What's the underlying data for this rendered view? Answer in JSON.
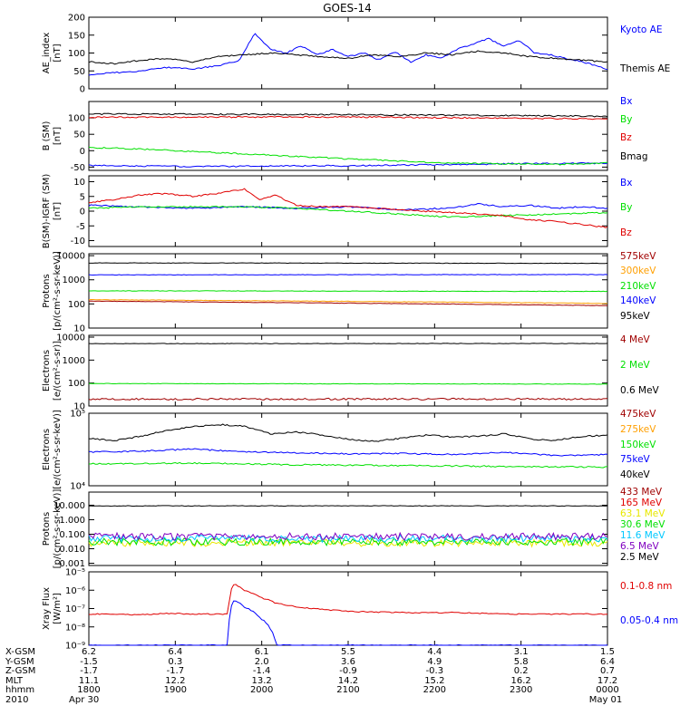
{
  "title": "GOES-14",
  "colors": {
    "black": "#000000",
    "blue": "#0000ff",
    "red": "#e00000",
    "green": "#00e000",
    "orange": "#ff9f00",
    "darkred": "#a00000",
    "yellow": "#e8e800",
    "cyan": "#00c8ff",
    "purple": "#8000c0"
  },
  "chart_data": [
    {
      "type": "line",
      "ylabel": [
        "AE_index",
        "[nT]"
      ],
      "ylim": [
        0,
        200
      ],
      "yscale": "linear",
      "yticks": [
        0,
        50,
        100,
        150,
        200
      ],
      "ytick_labels": [
        "0",
        "50",
        "100",
        "150",
        "200"
      ],
      "series": [
        {
          "name": "Kyoto AE",
          "color": "#0000ff",
          "x": [
            0,
            0.05,
            0.1,
            0.15,
            0.2,
            0.25,
            0.29,
            0.32,
            0.35,
            0.38,
            0.41,
            0.44,
            0.47,
            0.5,
            0.53,
            0.56,
            0.59,
            0.62,
            0.65,
            0.68,
            0.71,
            0.74,
            0.77,
            0.8,
            0.83,
            0.86,
            0.89,
            0.92,
            0.95,
            0.98,
            1.0
          ],
          "y": [
            40,
            45,
            50,
            60,
            55,
            65,
            80,
            155,
            110,
            100,
            120,
            95,
            110,
            90,
            100,
            80,
            105,
            75,
            95,
            85,
            110,
            125,
            140,
            120,
            135,
            100,
            95,
            85,
            75,
            65,
            55
          ]
        },
        {
          "name": "Themis AE",
          "color": "#000000",
          "x": [
            0,
            0.05,
            0.1,
            0.15,
            0.2,
            0.25,
            0.3,
            0.35,
            0.4,
            0.45,
            0.5,
            0.55,
            0.6,
            0.65,
            0.7,
            0.75,
            0.8,
            0.85,
            0.9,
            0.95,
            1.0
          ],
          "y": [
            75,
            70,
            80,
            85,
            75,
            90,
            95,
            100,
            95,
            90,
            85,
            95,
            90,
            100,
            95,
            105,
            100,
            90,
            85,
            80,
            75
          ]
        }
      ]
    },
    {
      "type": "line",
      "ylabel": [
        "B (SM)",
        "[nT]"
      ],
      "ylim": [
        -60,
        150
      ],
      "yscale": "linear",
      "yticks": [
        -50,
        0,
        50,
        100
      ],
      "ytick_labels": [
        "-50",
        "0",
        "50",
        "100"
      ],
      "series": [
        {
          "name": "Bx",
          "color": "#0000ff",
          "x": [
            0,
            0.2,
            0.5,
            0.8,
            1.0
          ],
          "y": [
            -45,
            -48,
            -46,
            -40,
            -38
          ]
        },
        {
          "name": "By",
          "color": "#00e000",
          "x": [
            0,
            0.1,
            0.3,
            0.5,
            0.7,
            0.9,
            1.0
          ],
          "y": [
            10,
            5,
            -10,
            -25,
            -38,
            -42,
            -38
          ]
        },
        {
          "name": "Bz",
          "color": "#e00000",
          "x": [
            0,
            0.5,
            1.0
          ],
          "y": [
            102,
            103,
            97
          ]
        },
        {
          "name": "Bmag",
          "color": "#000000",
          "x": [
            0,
            0.5,
            1.0
          ],
          "y": [
            112,
            110,
            105
          ]
        }
      ]
    },
    {
      "type": "line",
      "ylabel": [
        "B(SM)-IGRF (SM)",
        "[nT]"
      ],
      "ylim": [
        -12,
        12
      ],
      "yscale": "linear",
      "yticks": [
        -10,
        -5,
        0,
        5,
        10
      ],
      "ytick_labels": [
        "-10",
        "-5",
        "0",
        "5",
        "10"
      ],
      "series": [
        {
          "name": "Bx",
          "color": "#0000ff",
          "x": [
            0,
            0.1,
            0.2,
            0.3,
            0.4,
            0.5,
            0.6,
            0.7,
            0.75,
            0.8,
            0.85,
            0.9,
            0.95,
            1.0
          ],
          "y": [
            2,
            1.5,
            1,
            1.5,
            1,
            1.5,
            0.5,
            1,
            2.5,
            1.5,
            2,
            1,
            1.5,
            1
          ]
        },
        {
          "name": "By",
          "color": "#00e000",
          "x": [
            0,
            0.1,
            0.2,
            0.3,
            0.4,
            0.5,
            0.6,
            0.7,
            0.8,
            0.9,
            1.0
          ],
          "y": [
            1,
            1.5,
            1.5,
            1.5,
            1,
            0,
            -1,
            -2,
            -1.5,
            -1,
            -0.5
          ]
        },
        {
          "name": "Bz",
          "color": "#e00000",
          "x": [
            0,
            0.05,
            0.1,
            0.15,
            0.2,
            0.25,
            0.3,
            0.33,
            0.36,
            0.4,
            0.45,
            0.5,
            0.55,
            0.6,
            0.65,
            0.7,
            0.75,
            0.8,
            0.85,
            0.9,
            0.95,
            1.0
          ],
          "y": [
            3,
            4,
            5.5,
            6,
            5,
            6,
            7.5,
            4,
            5.5,
            2,
            1.5,
            1.5,
            1,
            0.5,
            0,
            -0.5,
            -1,
            -1.5,
            -3,
            -3.5,
            -4.5,
            -5.5
          ]
        }
      ]
    },
    {
      "type": "line",
      "ylabel": [
        "Protons",
        "[p/(cm²-s-sr-keV)]"
      ],
      "ylim": [
        10,
        12000
      ],
      "yscale": "log",
      "yticks": [
        10,
        100,
        1000,
        10000
      ],
      "ytick_labels": [
        "10",
        "100",
        "1000",
        "10000"
      ],
      "series": [
        {
          "name": "575keV",
          "color": "#a00000",
          "x": [
            0,
            1
          ],
          "y": [
            130,
            85
          ]
        },
        {
          "name": "300keV",
          "color": "#ff9f00",
          "x": [
            0,
            1
          ],
          "y": [
            150,
            105
          ]
        },
        {
          "name": "210keV",
          "color": "#00e000",
          "x": [
            0,
            1
          ],
          "y": [
            350,
            330
          ]
        },
        {
          "name": "140keV",
          "color": "#0000ff",
          "x": [
            0,
            1
          ],
          "y": [
            1600,
            1650
          ]
        },
        {
          "name": "95keV",
          "color": "#000000",
          "x": [
            0,
            1
          ],
          "y": [
            5000,
            4800
          ]
        }
      ]
    },
    {
      "type": "line",
      "ylabel": [
        "Electrons",
        "[e/(cm²-s-sr)]"
      ],
      "ylim": [
        10,
        12000
      ],
      "yscale": "log",
      "yticks": [
        10,
        100,
        1000,
        10000
      ],
      "ytick_labels": [
        "10",
        "100",
        "1000",
        "10000"
      ],
      "series": [
        {
          "name": "4 MeV",
          "color": "#a00000",
          "x": [
            0,
            1
          ],
          "y": [
            20,
            20
          ]
        },
        {
          "name": "2 MeV",
          "color": "#00e000",
          "x": [
            0,
            1
          ],
          "y": [
            95,
            90
          ]
        },
        {
          "name": "0.6 MeV",
          "color": "#000000",
          "x": [
            0,
            1
          ],
          "y": [
            5200,
            5300
          ]
        }
      ]
    },
    {
      "type": "line",
      "ylabel": [
        "Electrons",
        "[e/(cm²-s-sr-keV)]"
      ],
      "ylim": [
        10000,
        100000
      ],
      "yscale": "log",
      "yticks": [
        10000,
        100000
      ],
      "ytick_labels": [
        "10⁴",
        "10⁵"
      ],
      "series": [
        {
          "name": "475keV",
          "color": "#a00000",
          "x": [
            0,
            1
          ],
          "y": [
            null,
            null
          ]
        },
        {
          "name": "275keV",
          "color": "#ff9f00",
          "x": [
            0,
            1
          ],
          "y": [
            null,
            null
          ]
        },
        {
          "name": "150keV",
          "color": "#00e000",
          "x": [
            0,
            0.2,
            0.4,
            0.6,
            0.8,
            1.0
          ],
          "y": [
            20000,
            20500,
            19500,
            19000,
            18500,
            18000
          ]
        },
        {
          "name": "75keV",
          "color": "#0000ff",
          "x": [
            0,
            0.1,
            0.2,
            0.3,
            0.4,
            0.5,
            0.6,
            0.7,
            0.8,
            0.9,
            1.0
          ],
          "y": [
            29000,
            30000,
            32000,
            29500,
            28500,
            27500,
            28000,
            27000,
            29000,
            26000,
            27000
          ]
        },
        {
          "name": "40keV",
          "color": "#000000",
          "x": [
            0,
            0.05,
            0.1,
            0.15,
            0.2,
            0.25,
            0.3,
            0.35,
            0.4,
            0.45,
            0.5,
            0.55,
            0.6,
            0.65,
            0.7,
            0.75,
            0.8,
            0.85,
            0.9,
            0.95,
            1.0
          ],
          "y": [
            45000,
            42000,
            48000,
            58000,
            65000,
            70000,
            66000,
            52000,
            55000,
            50000,
            44000,
            41000,
            45000,
            50000,
            47000,
            48000,
            52000,
            44000,
            42000,
            48000,
            50000
          ]
        }
      ]
    },
    {
      "type": "line",
      "ylabel": [
        "Protons",
        "[p/(cm²-s-sr-keV)]"
      ],
      "ylim": [
        0.0007,
        80
      ],
      "yscale": "log",
      "yticks": [
        0.001,
        0.01,
        0.1,
        1,
        10
      ],
      "ytick_labels": [
        "0.001",
        "0.010",
        "0.100",
        "1.000",
        "10.000"
      ],
      "series": [
        {
          "name": "433 MeV",
          "color": "#a00000",
          "x": [
            0,
            1
          ],
          "y": [
            null,
            null
          ]
        },
        {
          "name": "165 MeV",
          "color": "#e00000",
          "x": [
            0,
            1
          ],
          "y": [
            null,
            null
          ]
        },
        {
          "name": "63.1 MeV",
          "color": "#e8e800",
          "x": [
            0,
            1
          ],
          "y": [
            0.025,
            0.025
          ]
        },
        {
          "name": "30.6 MeV",
          "color": "#00e000",
          "x": [
            0,
            1
          ],
          "y": [
            0.03,
            0.03
          ]
        },
        {
          "name": "11.6 MeV",
          "color": "#00c8ff",
          "x": [
            0,
            1
          ],
          "y": [
            0.05,
            0.05
          ]
        },
        {
          "name": "6.5 MeV",
          "color": "#8000c0",
          "x": [
            0,
            1
          ],
          "y": [
            0.07,
            0.07
          ]
        },
        {
          "name": "2.5 MeV",
          "color": "#000000",
          "x": [
            0,
            1
          ],
          "y": [
            9,
            9
          ]
        }
      ]
    },
    {
      "type": "line",
      "ylabel": [
        "Xray Flux",
        "[W/m²]"
      ],
      "ylim": [
        1e-09,
        1e-05
      ],
      "yscale": "log",
      "yticks": [
        1e-09,
        1e-08,
        1e-07,
        1e-06,
        1e-05
      ],
      "ytick_labels": [
        "10⁻⁹",
        "10⁻⁸",
        "10⁻⁷",
        "10⁻⁶",
        "10⁻⁵"
      ],
      "series": [
        {
          "name": "0.1-0.8 nm",
          "color": "#e00000",
          "x": [
            0,
            0.05,
            0.1,
            0.15,
            0.2,
            0.24,
            0.27,
            0.28,
            0.3,
            0.33,
            0.36,
            0.4,
            0.45,
            0.5,
            0.6,
            0.7,
            0.8,
            0.9,
            1.0
          ],
          "y": [
            5e-08,
            5e-08,
            4.5e-08,
            5.5e-08,
            5e-08,
            5e-08,
            5e-08,
            2.2e-06,
            1e-06,
            4e-07,
            2e-07,
            1.2e-07,
            9e-08,
            7e-08,
            6e-08,
            6e-08,
            5e-08,
            5e-08,
            5e-08
          ]
        },
        {
          "name": "0.05-0.4 nm",
          "color": "#0000ff",
          "x": [
            0,
            0.1,
            0.2,
            0.25,
            0.27,
            0.28,
            0.3,
            0.33,
            0.35,
            0.36,
            0.4,
            0.5,
            0.6,
            0.7,
            0.8,
            0.9,
            1.0
          ],
          "y": [
            1e-09,
            1e-09,
            1e-09,
            1e-09,
            1e-09,
            3e-07,
            1.2e-07,
            3e-08,
            8e-09,
            1e-09,
            1e-09,
            1e-09,
            1e-09,
            1e-09,
            1e-09,
            1e-09,
            1e-09
          ]
        }
      ]
    }
  ],
  "x_table": {
    "row_labels": [
      "X-GSM",
      "Y-GSM",
      "Z-GSM",
      "MLT",
      "hhmm",
      "2010"
    ],
    "columns": [
      [
        "6.2",
        "-1.5",
        "-1.7",
        "11.1",
        "1800",
        "Apr 30"
      ],
      [
        "6.4",
        "0.3",
        "-1.7",
        "12.2",
        "1900",
        ""
      ],
      [
        "6.1",
        "2.0",
        "-1.4",
        "13.2",
        "2000",
        ""
      ],
      [
        "5.5",
        "3.6",
        "-0.9",
        "14.2",
        "2100",
        ""
      ],
      [
        "4.4",
        "4.9",
        "-0.3",
        "15.2",
        "2200",
        ""
      ],
      [
        "3.1",
        "5.8",
        "0.2",
        "16.2",
        "2300",
        ""
      ],
      [
        "1.5",
        "6.4",
        "0.7",
        "17.2",
        "0000",
        "May 01"
      ]
    ]
  }
}
